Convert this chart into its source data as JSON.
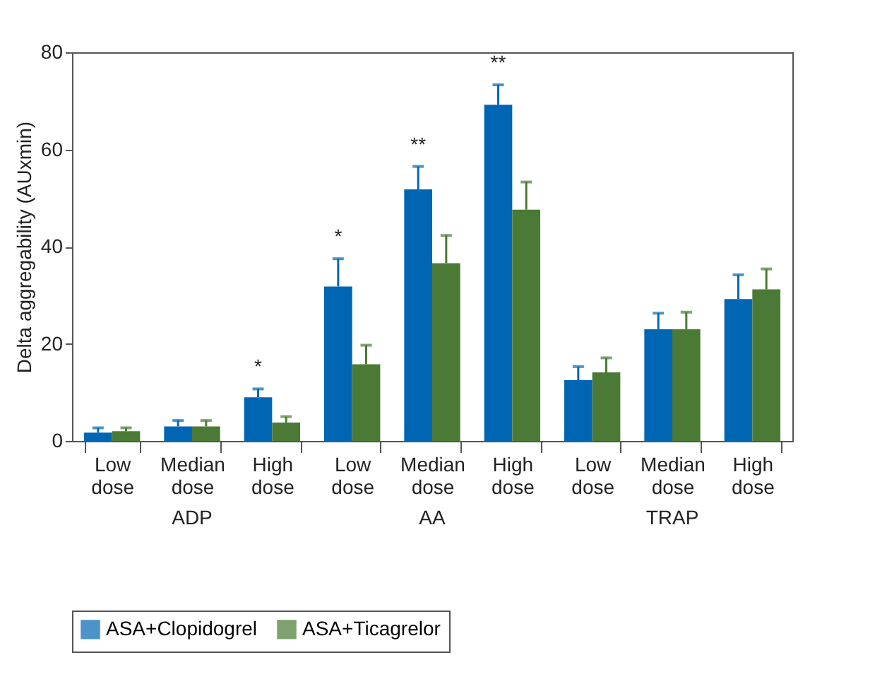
{
  "chart_data": {
    "type": "bar",
    "ylabel": "Delta aggregability (AUxmin)",
    "categories": [
      "Low dose",
      "Median dose",
      "High dose",
      "Low dose",
      "Median dose",
      "High dose",
      "Low dose",
      "Median dose",
      "High dose"
    ],
    "series": [
      {
        "name": "ASA+Clopidogrel",
        "color": "#0066b3",
        "values": [
          1.7,
          3.0,
          9.0,
          31.8,
          51.8,
          69.2,
          12.5,
          23.0,
          29.2
        ],
        "errors": [
          [
            1.7,
            2.7
          ],
          [
            3.0,
            4.2
          ],
          [
            9.0,
            10.7
          ],
          [
            31.8,
            37.5
          ],
          [
            51.8,
            56.5
          ],
          [
            69.2,
            73.3
          ],
          [
            12.5,
            15.3
          ],
          [
            23.0,
            26.3
          ],
          [
            29.2,
            34.2
          ]
        ],
        "value_labels": [
          null,
          null,
          "*",
          "*",
          "**",
          "**",
          null,
          null,
          null
        ]
      },
      {
        "name": "ASA+Ticagrelor",
        "color": "#4a7a35",
        "values": [
          2.0,
          3.0,
          3.8,
          15.8,
          36.6,
          47.6,
          14.1,
          23.0,
          31.2
        ],
        "errors": [
          [
            2.0,
            2.7
          ],
          [
            3.0,
            4.2
          ],
          [
            3.8,
            5.0
          ],
          [
            15.8,
            19.7
          ],
          [
            36.6,
            42.3
          ],
          [
            47.6,
            53.3
          ],
          [
            14.1,
            17.1
          ],
          [
            23.0,
            26.5
          ],
          [
            31.2,
            35.4
          ]
        ]
      }
    ],
    "annotations": [
      "ADP",
      "AA",
      "TRAP"
    ],
    "ylim": [
      0,
      80
    ],
    "yticks": [
      0,
      20,
      40,
      60,
      80
    ],
    "grid": false,
    "legend": "bottom"
  }
}
